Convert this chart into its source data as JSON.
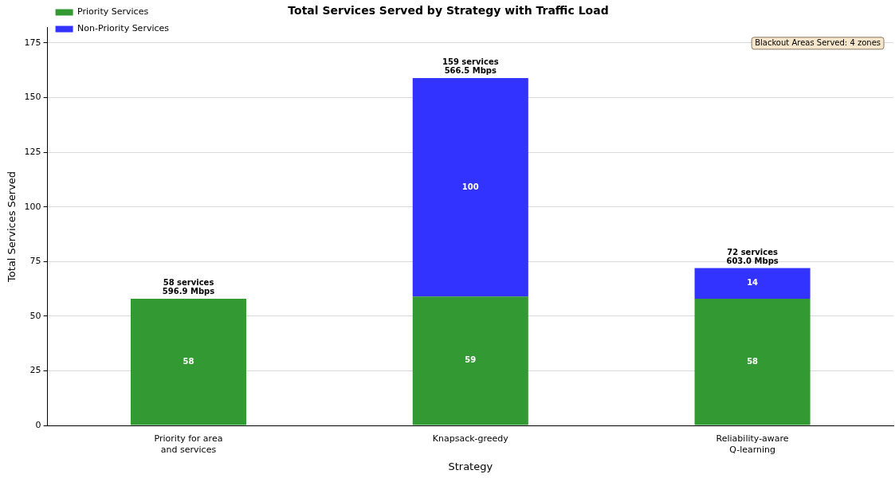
{
  "chart_data": {
    "type": "bar",
    "title": "Total Services Served by Strategy with Traffic Load",
    "xlabel": "Strategy",
    "ylabel": "Total Services Served",
    "categories": [
      "Priority for area\nand services",
      "Knapsack-greedy",
      "Reliability-aware\nQ-learning"
    ],
    "stacked": true,
    "series": [
      {
        "name": "Priority Services",
        "color": "#339933",
        "values": [
          58,
          59,
          58
        ],
        "value_labels": [
          "58",
          "59",
          "58"
        ]
      },
      {
        "name": "Non-Priority Services",
        "color": "#3333ff",
        "values": [
          null,
          100,
          14
        ],
        "value_labels": [
          null,
          "100",
          "14"
        ]
      }
    ],
    "totals": [
      "58 services\n596.9 Mbps",
      "159 services\n566.5 Mbps",
      "72 services\n603.0 Mbps"
    ],
    "ylim": [
      0,
      182
    ],
    "yticks": [
      0,
      25,
      50,
      75,
      100,
      125,
      150,
      175
    ],
    "grid": "y",
    "legend": "top left",
    "annotations": [
      "Blackout Areas Served: 4 zones"
    ]
  }
}
